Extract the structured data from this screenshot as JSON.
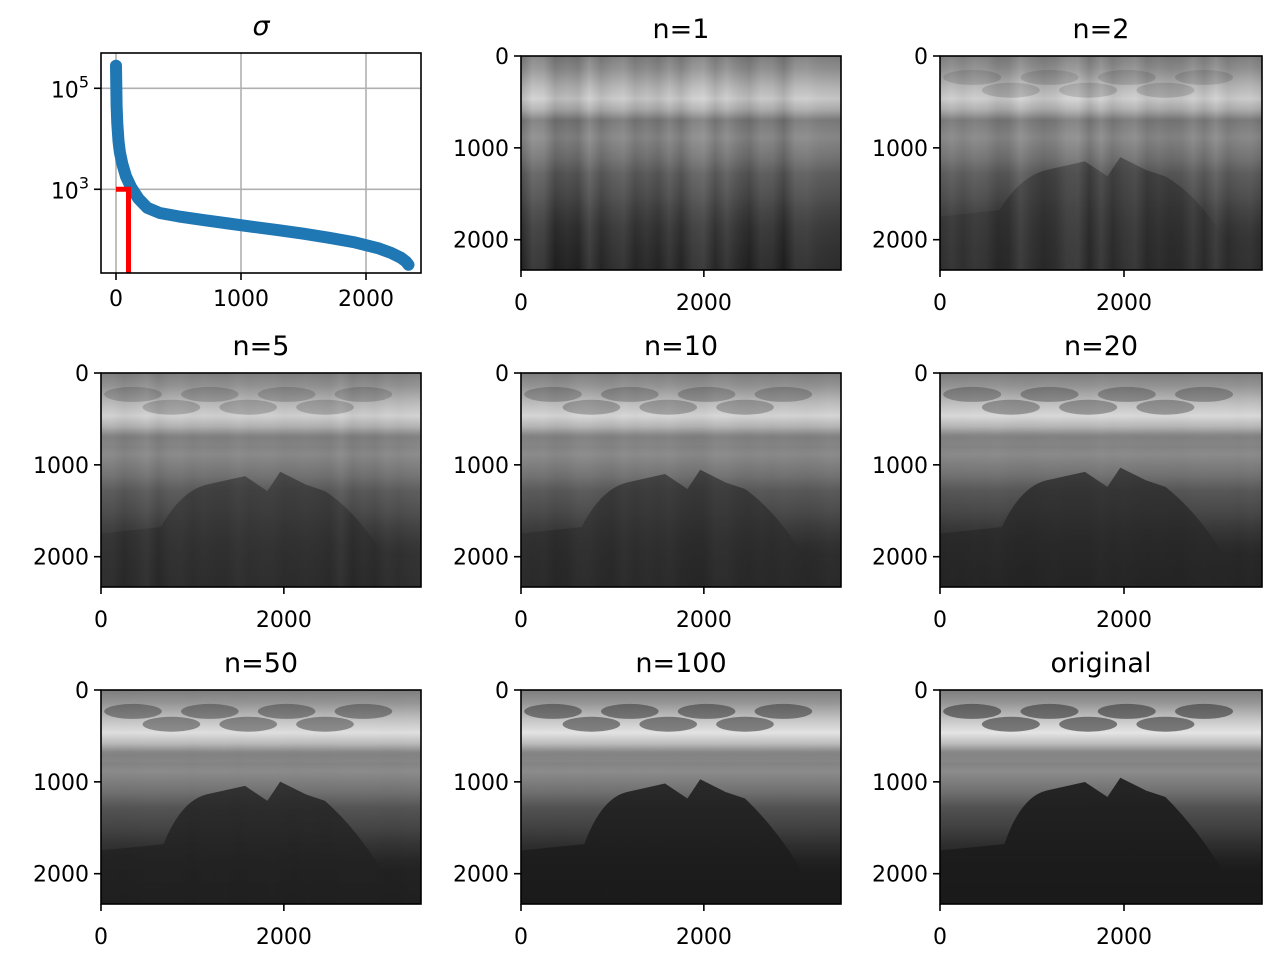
{
  "figure": {
    "colors": {
      "line": "#1f77b4",
      "cutoff": "#ff0000",
      "grid": "#b0b0b0",
      "frame": "#000000"
    }
  },
  "chart_data": [
    {
      "type": "scatter",
      "title": "σ",
      "yscale": "log",
      "grid": true,
      "xlim": [
        -120,
        2440
      ],
      "ylim": [
        22,
        500000
      ],
      "xticks": [
        0,
        1000,
        2000
      ],
      "xtick_labels": [
        "0",
        "1000",
        "2000"
      ],
      "yticks": [
        1000,
        100000
      ],
      "ytick_labels": [
        {
          "base": "10",
          "exp": "3"
        },
        {
          "base": "10",
          "exp": "5"
        }
      ],
      "series": [
        {
          "x": [
            0,
            5,
            10,
            20,
            30,
            50,
            80,
            120,
            180,
            250,
            350,
            500,
            700,
            900,
            1100,
            1300,
            1500,
            1700,
            1900,
            2100,
            2200,
            2280,
            2320,
            2340
          ],
          "y": [
            280000,
            45000,
            20000,
            9000,
            5500,
            3200,
            1800,
            1100,
            650,
            430,
            340,
            290,
            245,
            210,
            180,
            155,
            132,
            110,
            90,
            68,
            55,
            44,
            37,
            32
          ]
        }
      ],
      "cutoff": {
        "x": 100,
        "y": 1000
      }
    },
    {
      "type": "image",
      "title": "n=1",
      "rank": 1,
      "xticks": [
        0,
        2000
      ],
      "yticks": [
        0,
        1000,
        2000
      ],
      "xlim": [
        0,
        3500
      ],
      "ylim": [
        2330,
        0
      ]
    },
    {
      "type": "image",
      "title": "n=2",
      "rank": 2,
      "xticks": [
        0,
        2000
      ],
      "yticks": [
        0,
        1000,
        2000
      ],
      "xlim": [
        0,
        3500
      ],
      "ylim": [
        2330,
        0
      ]
    },
    {
      "type": "image",
      "title": "n=5",
      "rank": 5,
      "xticks": [
        0,
        2000
      ],
      "yticks": [
        0,
        1000,
        2000
      ],
      "xlim": [
        0,
        3500
      ],
      "ylim": [
        2330,
        0
      ]
    },
    {
      "type": "image",
      "title": "n=10",
      "rank": 10,
      "xticks": [
        0,
        2000
      ],
      "yticks": [
        0,
        1000,
        2000
      ],
      "xlim": [
        0,
        3500
      ],
      "ylim": [
        2330,
        0
      ]
    },
    {
      "type": "image",
      "title": "n=20",
      "rank": 20,
      "xticks": [
        0,
        2000
      ],
      "yticks": [
        0,
        1000,
        2000
      ],
      "xlim": [
        0,
        3500
      ],
      "ylim": [
        2330,
        0
      ]
    },
    {
      "type": "image",
      "title": "n=50",
      "rank": 50,
      "xticks": [
        0,
        2000
      ],
      "yticks": [
        0,
        1000,
        2000
      ],
      "xlim": [
        0,
        3500
      ],
      "ylim": [
        2330,
        0
      ]
    },
    {
      "type": "image",
      "title": "n=100",
      "rank": 100,
      "xticks": [
        0,
        2000
      ],
      "yticks": [
        0,
        1000,
        2000
      ],
      "xlim": [
        0,
        3500
      ],
      "ylim": [
        2330,
        0
      ]
    },
    {
      "type": "image",
      "title": "original",
      "rank": 2330,
      "xticks": [
        0,
        2000
      ],
      "yticks": [
        0,
        1000,
        2000
      ],
      "xlim": [
        0,
        3500
      ],
      "ylim": [
        2330,
        0
      ]
    }
  ]
}
